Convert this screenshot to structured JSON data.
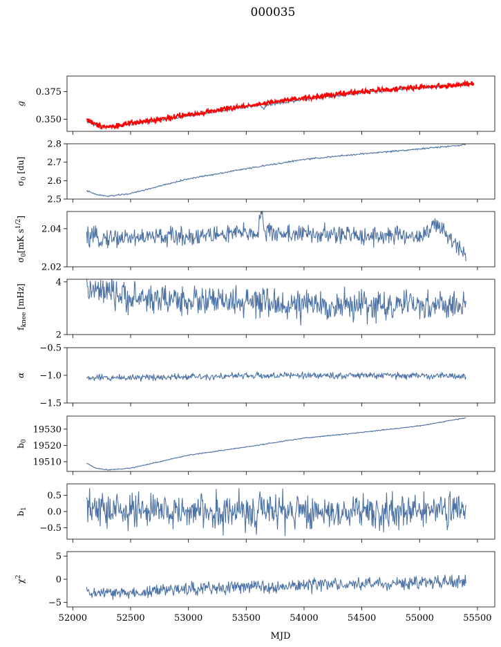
{
  "title": "000035",
  "xlabel": "MJD",
  "colors": {
    "series": "#4c72a5",
    "overlay": "#ff0000"
  },
  "chart_data": {
    "type": "line",
    "xlim": [
      51950,
      55650
    ],
    "xticks": [
      52000,
      52500,
      53000,
      53500,
      54000,
      54500,
      55000,
      55500
    ],
    "x_start": 52120,
    "x_end": 55400,
    "panels": [
      {
        "name": "g",
        "ylabel": "g",
        "ylim": [
          0.339,
          0.389
        ],
        "yticks": [
          0.35,
          0.375
        ],
        "ytick_labels": [
          "0.350",
          "0.375"
        ],
        "series": [
          {
            "color": "series",
            "noise": 0.0006,
            "points": [
              [
                52120,
                0.348
              ],
              [
                52200,
                0.3445
              ],
              [
                52300,
                0.343
              ],
              [
                52500,
                0.3455
              ],
              [
                53000,
                0.353
              ],
              [
                53500,
                0.361
              ],
              [
                53620,
                0.363
              ],
              [
                53650,
                0.3595
              ],
              [
                53680,
                0.363
              ],
              [
                54000,
                0.368
              ],
              [
                54500,
                0.374
              ],
              [
                55000,
                0.3785
              ],
              [
                55200,
                0.3795
              ],
              [
                55400,
                0.3815
              ]
            ]
          },
          {
            "color": "overlay",
            "noise": 0.0012,
            "x_end": 55470,
            "points": [
              [
                52120,
                0.35
              ],
              [
                52200,
                0.345
              ],
              [
                52300,
                0.343
              ],
              [
                52500,
                0.346
              ],
              [
                53000,
                0.354
              ],
              [
                53500,
                0.362
              ],
              [
                54000,
                0.369
              ],
              [
                54500,
                0.375
              ],
              [
                55000,
                0.379
              ],
              [
                55200,
                0.38
              ],
              [
                55470,
                0.382
              ]
            ]
          }
        ]
      },
      {
        "name": "sigma0-du",
        "ylabel": "σ0 [du]",
        "ylim": [
          2.5,
          2.8
        ],
        "yticks": [
          2.5,
          2.6,
          2.7,
          2.8
        ],
        "ytick_labels": [
          "2.5",
          "2.6",
          "2.7",
          "2.8"
        ],
        "series": [
          {
            "color": "series",
            "noise": 0.002,
            "points": [
              [
                52120,
                2.545
              ],
              [
                52200,
                2.525
              ],
              [
                52300,
                2.515
              ],
              [
                52500,
                2.53
              ],
              [
                53000,
                2.61
              ],
              [
                53500,
                2.665
              ],
              [
                54000,
                2.715
              ],
              [
                54500,
                2.745
              ],
              [
                55000,
                2.772
              ],
              [
                55400,
                2.795
              ]
            ]
          }
        ]
      },
      {
        "name": "sigma0-mks",
        "ylabel": "σ0[mK s1/2]",
        "ylim": [
          2.02,
          2.049
        ],
        "yticks": [
          2.02,
          2.04
        ],
        "ytick_labels": [
          "2.02",
          "2.04"
        ],
        "series": [
          {
            "color": "series",
            "noise": 0.0025,
            "points": [
              [
                52120,
                2.035
              ],
              [
                53000,
                2.036
              ],
              [
                53600,
                2.038
              ],
              [
                53630,
                2.05
              ],
              [
                53660,
                2.038
              ],
              [
                54000,
                2.037
              ],
              [
                55000,
                2.036
              ],
              [
                55150,
                2.042
              ],
              [
                55250,
                2.035
              ],
              [
                55400,
                2.028
              ]
            ]
          }
        ]
      },
      {
        "name": "fknee",
        "ylabel": "fknee [mHz]",
        "ylim": [
          2.0,
          4.1
        ],
        "yticks": [
          2,
          4
        ],
        "ytick_labels": [
          "2",
          "4"
        ],
        "series": [
          {
            "color": "series",
            "noise": 0.28,
            "points": [
              [
                52120,
                3.7
              ],
              [
                52500,
                3.4
              ],
              [
                53000,
                3.3
              ],
              [
                54000,
                3.1
              ],
              [
                54500,
                3.1
              ],
              [
                55400,
                3.1
              ]
            ]
          }
        ]
      },
      {
        "name": "alpha",
        "ylabel": "α",
        "ylim": [
          -1.5,
          -0.5
        ],
        "yticks": [
          -1.5,
          -1.0,
          -0.5
        ],
        "ytick_labels": [
          "−1.5",
          "−1.0",
          "−0.5"
        ],
        "series": [
          {
            "color": "series",
            "noise": 0.03,
            "points": [
              [
                52120,
                -1.05
              ],
              [
                53000,
                -1.02
              ],
              [
                54000,
                -1.0
              ],
              [
                55400,
                -1.01
              ]
            ]
          }
        ]
      },
      {
        "name": "b0",
        "ylabel": "b0",
        "ylim": [
          19504,
          19538
        ],
        "yticks": [
          19510,
          19520,
          19530
        ],
        "ytick_labels": [
          "19510",
          "19520",
          "19530"
        ],
        "series": [
          {
            "color": "series",
            "noise": 0.15,
            "points": [
              [
                52120,
                19509
              ],
              [
                52200,
                19506
              ],
              [
                52300,
                19505
              ],
              [
                52500,
                19506
              ],
              [
                53000,
                19514
              ],
              [
                53500,
                19519
              ],
              [
                54000,
                19524.5
              ],
              [
                54500,
                19528
              ],
              [
                55000,
                19532
              ],
              [
                55400,
                19537
              ]
            ]
          }
        ]
      },
      {
        "name": "b1",
        "ylabel": "b1",
        "ylim": [
          -0.85,
          0.85
        ],
        "yticks": [
          -0.5,
          0.0,
          0.5
        ],
        "ytick_labels": [
          "−0.5",
          "0.0",
          "0.5"
        ],
        "series": [
          {
            "color": "series",
            "noise": 0.28,
            "points": [
              [
                52120,
                0.05
              ],
              [
                53000,
                0.0
              ],
              [
                54000,
                0.0
              ],
              [
                55400,
                0.0
              ]
            ]
          }
        ]
      },
      {
        "name": "chi2",
        "ylabel": "χ2",
        "ylim": [
          -6,
          6
        ],
        "yticks": [
          -5,
          0,
          5
        ],
        "ytick_labels": [
          "−5",
          "0",
          "5"
        ],
        "series": [
          {
            "color": "series",
            "noise": 0.7,
            "points": [
              [
                52120,
                -3.0
              ],
              [
                52500,
                -3.0
              ],
              [
                53000,
                -2.0
              ],
              [
                54000,
                -1.3
              ],
              [
                55000,
                -0.8
              ],
              [
                55400,
                -0.5
              ]
            ]
          }
        ]
      }
    ]
  }
}
